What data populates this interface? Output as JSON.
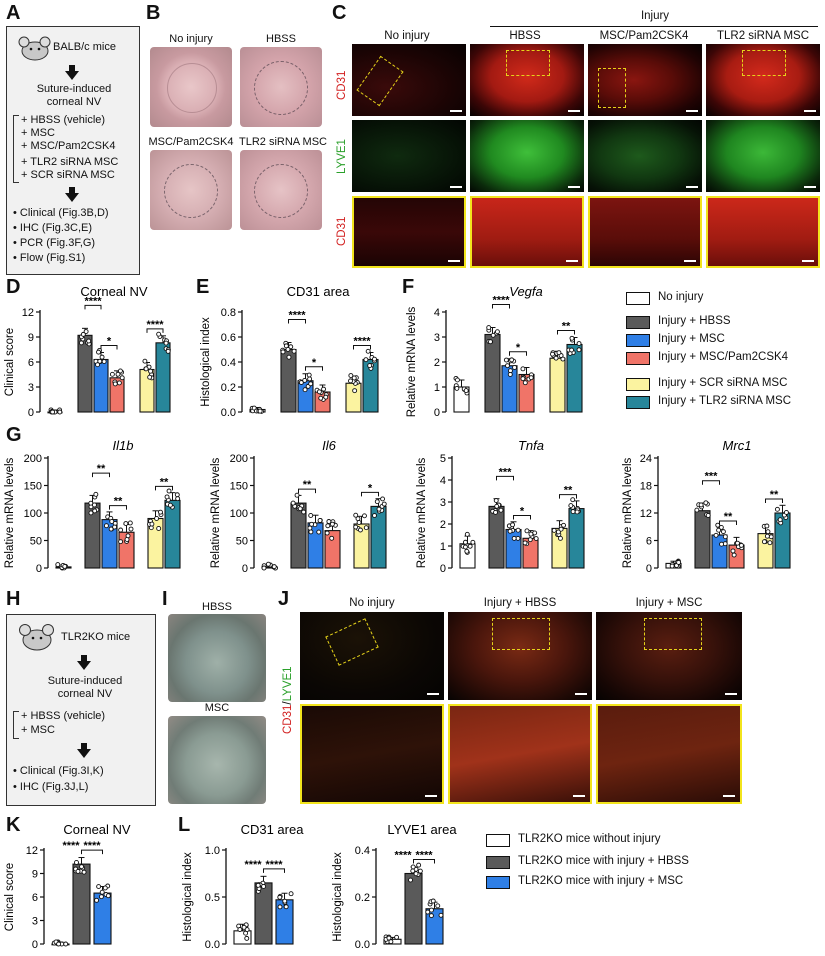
{
  "panels": {
    "A": "A",
    "B": "B",
    "C": "C",
    "D": "D",
    "E": "E",
    "F": "F",
    "G": "G",
    "H": "H",
    "I": "I",
    "J": "J",
    "K": "K",
    "L": "L"
  },
  "flowA": {
    "mice": "BALB/c mice",
    "model": [
      "Suture-induced",
      "corneal NV"
    ],
    "groups": [
      "+ HBSS (vehicle)",
      "+ MSC",
      "+ MSC/Pam2CSK4",
      "+ TLR2 siRNA MSC",
      "+ SCR siRNA MSC"
    ],
    "assays": [
      "Clinical (Fig.3B,D)",
      "IHC (Fig.3C,E)",
      "PCR (Fig.3F,G)",
      "Flow (Fig.S1)"
    ]
  },
  "photosB": [
    "No injury",
    "HBSS",
    "MSC/Pam2CSK4",
    "TLR2 siRNA MSC"
  ],
  "microC": {
    "injury": "Injury",
    "columns": [
      "No injury",
      "HBSS",
      "MSC/Pam2CSK4",
      "TLR2 siRNA MSC"
    ],
    "rows": [
      "CD31",
      "LYVE1",
      "CD31"
    ]
  },
  "flowH": {
    "mice": "TLR2KO mice",
    "model": [
      "Suture-induced",
      "corneal NV"
    ],
    "groups": [
      "+ HBSS (vehicle)",
      "+ MSC"
    ],
    "assays": [
      "Clinical (Fig.3I,K)",
      "IHC (Fig.3J,L)"
    ]
  },
  "photosI": [
    "HBSS",
    "MSC"
  ],
  "microJ": {
    "columns": [
      "No injury",
      "Injury + HBSS",
      "Injury + MSC"
    ],
    "rowlabel": [
      "CD31",
      "/",
      "LYVE1"
    ]
  },
  "legendTop": [
    {
      "label": "No injury",
      "color": "#ffffff"
    },
    {
      "label": "Injury + HBSS",
      "color": "#5a5a5a"
    },
    {
      "label": "Injury + MSC",
      "color": "#2f7fe6"
    },
    {
      "label": "Injury + MSC/Pam2CSK4",
      "color": "#f07468"
    },
    {
      "label": "Injury + SCR siRNA MSC",
      "color": "#fbf3a0"
    },
    {
      "label": "Injury + TLR2 siRNA MSC",
      "color": "#27869a"
    }
  ],
  "legendBottom": [
    {
      "label": "TLR2KO mice without injury",
      "color": "#ffffff"
    },
    {
      "label": "TLR2KO mice with injury + HBSS",
      "color": "#5a5a5a"
    },
    {
      "label": "TLR2KO mice with injury + MSC",
      "color": "#2f7fe6"
    }
  ],
  "chart_data": [
    {
      "id": "D",
      "type": "bar",
      "title": "Corneal NV",
      "title_italic": false,
      "ylabel": "Clinical score",
      "ylim": [
        0,
        12
      ],
      "yticks": [
        0,
        3,
        6,
        9,
        12
      ],
      "groups": [
        [
          "No injury"
        ],
        [
          "Injury + HBSS",
          "Injury + MSC",
          "Injury + MSC/Pam2CSK4"
        ],
        [
          "Injury + SCR siRNA MSC",
          "Injury + TLR2 siRNA MSC"
        ]
      ],
      "values": [
        0,
        9.2,
        6.3,
        4.1,
        5.1,
        8.3
      ],
      "sig": [
        {
          "from": 1,
          "to": 2,
          "label": "****",
          "level": 1
        },
        {
          "from": 2,
          "to": 3,
          "label": "*",
          "level": 0
        },
        {
          "from": 4,
          "to": 5,
          "label": "****",
          "level": 0
        }
      ]
    },
    {
      "id": "E",
      "type": "bar",
      "title": "CD31 area",
      "title_italic": false,
      "ylabel": "Histological index",
      "ylim": [
        0,
        0.8
      ],
      "yticks": [
        0,
        0.2,
        0.4,
        0.6,
        0.8
      ],
      "groups": [
        [
          "No injury"
        ],
        [
          "Injury + HBSS",
          "Injury + MSC",
          "Injury + MSC/Pam2CSK4"
        ],
        [
          "Injury + SCR siRNA MSC",
          "Injury + TLR2 siRNA MSC"
        ]
      ],
      "values": [
        0.02,
        0.5,
        0.25,
        0.16,
        0.23,
        0.42
      ],
      "sig": [
        {
          "from": 1,
          "to": 2,
          "label": "****",
          "level": 1
        },
        {
          "from": 2,
          "to": 3,
          "label": "*",
          "level": 0
        },
        {
          "from": 4,
          "to": 5,
          "label": "****",
          "level": 0
        }
      ]
    },
    {
      "id": "F",
      "type": "bar",
      "title": "Vegfa",
      "title_italic": true,
      "ylabel": "Relative mRNA levels",
      "ylim": [
        0,
        4
      ],
      "yticks": [
        0,
        1,
        2,
        3,
        4
      ],
      "groups": [
        [
          "No injury"
        ],
        [
          "Injury + HBSS",
          "Injury + MSC",
          "Injury + MSC/Pam2CSK4"
        ],
        [
          "Injury + SCR siRNA MSC",
          "Injury + TLR2 siRNA MSC"
        ]
      ],
      "values": [
        1.0,
        3.1,
        1.85,
        1.5,
        2.15,
        2.7
      ],
      "sig": [
        {
          "from": 1,
          "to": 2,
          "label": "****",
          "level": 1
        },
        {
          "from": 2,
          "to": 3,
          "label": "*",
          "level": 0
        },
        {
          "from": 4,
          "to": 5,
          "label": "**",
          "level": 0
        }
      ]
    },
    {
      "id": "G1",
      "type": "bar",
      "title": "Il1b",
      "title_italic": true,
      "ylabel": "Relative mRNA levels",
      "ylim": [
        0,
        200
      ],
      "yticks": [
        0,
        50,
        100,
        150,
        200
      ],
      "groups": [
        [
          "No injury"
        ],
        [
          "Injury + HBSS",
          "Injury + MSC",
          "Injury + MSC/Pam2CSK4"
        ],
        [
          "Injury + SCR siRNA MSC",
          "Injury + TLR2 siRNA MSC"
        ]
      ],
      "values": [
        2,
        118,
        88,
        65,
        90,
        123
      ],
      "sig": [
        {
          "from": 1,
          "to": 2,
          "label": "**",
          "level": 1
        },
        {
          "from": 2,
          "to": 3,
          "label": "**",
          "level": 0
        },
        {
          "from": 4,
          "to": 5,
          "label": "**",
          "level": 0
        }
      ]
    },
    {
      "id": "G2",
      "type": "bar",
      "title": "Il6",
      "title_italic": true,
      "ylabel": "Relative mRNA levels",
      "ylim": [
        0,
        200
      ],
      "yticks": [
        0,
        50,
        100,
        150,
        200
      ],
      "groups": [
        [
          "No injury"
        ],
        [
          "Injury + HBSS",
          "Injury + MSC",
          "Injury + MSC/Pam2CSK4"
        ],
        [
          "Injury + SCR siRNA MSC",
          "Injury + TLR2 siRNA MSC"
        ]
      ],
      "values": [
        2,
        118,
        82,
        68,
        80,
        112
      ],
      "sig": [
        {
          "from": 1,
          "to": 2,
          "label": "**",
          "level": 0
        },
        {
          "from": 4,
          "to": 5,
          "label": "*",
          "level": 0
        }
      ]
    },
    {
      "id": "G3",
      "type": "bar",
      "title": "Tnfa",
      "title_italic": true,
      "ylabel": "Relative mRNA levels",
      "ylim": [
        0,
        5
      ],
      "yticks": [
        0,
        1,
        2,
        3,
        4,
        5
      ],
      "groups": [
        [
          "No injury"
        ],
        [
          "Injury + HBSS",
          "Injury + MSC",
          "Injury + MSC/Pam2CSK4"
        ],
        [
          "Injury + SCR siRNA MSC",
          "Injury + TLR2 siRNA MSC"
        ]
      ],
      "values": [
        1.1,
        2.8,
        1.75,
        1.35,
        1.8,
        2.7
      ],
      "sig": [
        {
          "from": 1,
          "to": 2,
          "label": "***",
          "level": 1
        },
        {
          "from": 2,
          "to": 3,
          "label": "*",
          "level": 0
        },
        {
          "from": 4,
          "to": 5,
          "label": "**",
          "level": 0
        }
      ]
    },
    {
      "id": "G4",
      "type": "bar",
      "title": "Mrc1",
      "title_italic": true,
      "ylabel": "Relative mRNA levels",
      "ylim": [
        0,
        24
      ],
      "yticks": [
        0,
        6,
        12,
        18,
        24
      ],
      "groups": [
        [
          "No injury"
        ],
        [
          "Injury + HBSS",
          "Injury + MSC",
          "Injury + MSC/Pam2CSK4"
        ],
        [
          "Injury + SCR siRNA MSC",
          "Injury + TLR2 siRNA MSC"
        ]
      ],
      "values": [
        1,
        12.5,
        7.2,
        5.0,
        7.5,
        12.0
      ],
      "sig": [
        {
          "from": 1,
          "to": 2,
          "label": "***",
          "level": 1
        },
        {
          "from": 2,
          "to": 3,
          "label": "**",
          "level": 0
        },
        {
          "from": 4,
          "to": 5,
          "label": "**",
          "level": 0
        }
      ]
    },
    {
      "id": "K",
      "type": "bar",
      "title": "Corneal NV",
      "title_italic": false,
      "ylabel": "Clinical score",
      "ylim": [
        0,
        12
      ],
      "yticks": [
        0,
        3,
        6,
        9,
        12
      ],
      "groups": [
        [
          "TLR2KO mice without injury",
          "TLR2KO mice with injury + HBSS",
          "TLR2KO mice with injury + MSC"
        ]
      ],
      "values": [
        0,
        10.2,
        6.5
      ],
      "sig": [
        {
          "from": 1,
          "to": 2,
          "label": "****",
          "level": 0
        },
        {
          "from": 0,
          "to": 1,
          "label": "****",
          "level": 0,
          "nobracket": true
        }
      ]
    },
    {
      "id": "L1",
      "type": "bar",
      "title": "CD31 area",
      "title_italic": false,
      "ylabel": "Histological index",
      "ylim": [
        0,
        1.0
      ],
      "yticks": [
        0.0,
        0.5,
        1.0
      ],
      "groups": [
        [
          "TLR2KO mice without injury",
          "TLR2KO mice with injury + HBSS",
          "TLR2KO mice with injury + MSC"
        ]
      ],
      "values": [
        0.14,
        0.65,
        0.47
      ],
      "sig": [
        {
          "from": 1,
          "to": 2,
          "label": "****",
          "level": 0
        },
        {
          "from": 0,
          "to": 1,
          "label": "****",
          "level": 0,
          "nobracket": true
        }
      ]
    },
    {
      "id": "L2",
      "type": "bar",
      "title": "LYVE1 area",
      "title_italic": false,
      "ylabel": "Histological index",
      "ylim": [
        0,
        0.4
      ],
      "yticks": [
        0.0,
        0.2,
        0.4
      ],
      "groups": [
        [
          "TLR2KO mice without injury",
          "TLR2KO mice with injury + HBSS",
          "TLR2KO mice with injury + MSC"
        ]
      ],
      "values": [
        0.02,
        0.3,
        0.15
      ],
      "sig": [
        {
          "from": 1,
          "to": 2,
          "label": "****",
          "level": 0
        },
        {
          "from": 0,
          "to": 1,
          "label": "****",
          "level": 0,
          "nobracket": true
        }
      ]
    }
  ]
}
